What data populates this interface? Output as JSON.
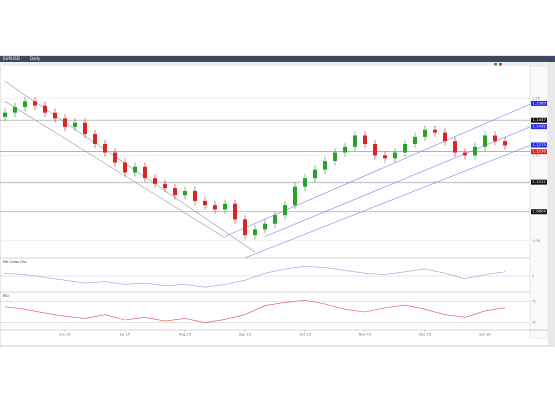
{
  "chart_data": {
    "type": "candlestick",
    "title": "EURUSD",
    "timeframe": "Daily",
    "open": [
      1.147,
      1.15,
      1.154,
      1.158,
      1.155,
      1.15,
      1.146,
      1.14,
      1.143,
      1.135,
      1.128,
      1.122,
      1.115,
      1.108,
      1.112,
      1.104,
      1.1,
      1.097,
      1.092,
      1.095,
      1.088,
      1.085,
      1.082,
      1.086,
      1.075,
      1.064,
      1.068,
      1.072,
      1.078,
      1.085,
      1.098,
      1.104,
      1.11,
      1.116,
      1.122,
      1.126,
      1.134,
      1.128,
      1.12,
      1.118,
      1.122,
      1.128,
      1.133,
      1.138,
      1.136,
      1.13,
      1.122,
      1.12,
      1.126,
      1.134,
      1.13
    ],
    "high": [
      1.153,
      1.157,
      1.161,
      1.161,
      1.158,
      1.153,
      1.149,
      1.146,
      1.146,
      1.138,
      1.131,
      1.125,
      1.118,
      1.115,
      1.115,
      1.107,
      1.103,
      1.1,
      1.098,
      1.098,
      1.091,
      1.088,
      1.089,
      1.089,
      1.078,
      1.071,
      1.075,
      1.081,
      1.088,
      1.101,
      1.107,
      1.113,
      1.119,
      1.125,
      1.129,
      1.137,
      1.137,
      1.131,
      1.123,
      1.125,
      1.131,
      1.136,
      1.141,
      1.141,
      1.139,
      1.133,
      1.125,
      1.129,
      1.137,
      1.137,
      1.133
    ],
    "low": [
      1.144,
      1.147,
      1.151,
      1.152,
      1.147,
      1.143,
      1.137,
      1.137,
      1.132,
      1.125,
      1.119,
      1.112,
      1.105,
      1.105,
      1.101,
      1.097,
      1.094,
      1.089,
      1.089,
      1.085,
      1.082,
      1.079,
      1.079,
      1.072,
      1.061,
      1.061,
      1.065,
      1.069,
      1.075,
      1.082,
      1.095,
      1.101,
      1.107,
      1.113,
      1.119,
      1.123,
      1.125,
      1.117,
      1.115,
      1.115,
      1.119,
      1.125,
      1.13,
      1.133,
      1.127,
      1.119,
      1.117,
      1.117,
      1.123,
      1.127,
      1.124
    ],
    "close": [
      1.15,
      1.154,
      1.158,
      1.155,
      1.15,
      1.146,
      1.14,
      1.143,
      1.135,
      1.128,
      1.122,
      1.115,
      1.108,
      1.112,
      1.104,
      1.1,
      1.097,
      1.092,
      1.095,
      1.088,
      1.085,
      1.082,
      1.086,
      1.075,
      1.064,
      1.068,
      1.072,
      1.078,
      1.085,
      1.098,
      1.104,
      1.11,
      1.116,
      1.122,
      1.126,
      1.134,
      1.128,
      1.12,
      1.118,
      1.122,
      1.128,
      1.133,
      1.138,
      1.136,
      1.13,
      1.122,
      1.12,
      1.126,
      1.134,
      1.13,
      1.127
    ],
    "up_color": "#2ca02c",
    "down_color": "#d62728",
    "ylim": [
      1.05,
      1.18
    ],
    "yticks": [
      1.06,
      1.08,
      1.1,
      1.12,
      1.14,
      1.16
    ],
    "horizontal_lines": [
      {
        "value": 1.1447,
        "color": "#999999"
      },
      {
        "value": 1.1226,
        "color": "#e06060"
      },
      {
        "value": 1.1012,
        "color": "#999999"
      },
      {
        "value": 1.0804,
        "color": "#999999"
      }
    ],
    "price_labels": [
      {
        "value": 1.1565,
        "color": "#2a2ae0"
      },
      {
        "value": 1.1447,
        "color": "#111111"
      },
      {
        "value": 1.1402,
        "color": "#2a2ae0"
      },
      {
        "value": 1.1273,
        "color": "#2a2ae0"
      },
      {
        "value": 1.1226,
        "color": "#e02020"
      },
      {
        "value": 1.1012,
        "color": "#111111"
      },
      {
        "value": 1.0804,
        "color": "#111111"
      }
    ],
    "trendlines": [
      {
        "x": [
          0,
          25
        ],
        "y": [
          1.172,
          1.052
        ],
        "color": "#999999"
      },
      {
        "x": [
          0,
          22
        ],
        "y": [
          1.158,
          1.062
        ],
        "color": "#999999"
      },
      {
        "x": [
          22,
          52.5
        ],
        "y": [
          1.063,
          1.156
        ],
        "color": "#8080ee"
      },
      {
        "x": [
          26,
          52.5
        ],
        "y": [
          1.063,
          1.14
        ],
        "color": "#8080ee"
      },
      {
        "x": [
          24,
          52.5
        ],
        "y": [
          1.048,
          1.127
        ],
        "color": "#8080ee"
      }
    ],
    "xticks": [
      {
        "value": 6,
        "label": "Jun 15"
      },
      {
        "value": 12,
        "label": "Jul 15"
      },
      {
        "value": 18,
        "label": "Aug 15"
      },
      {
        "value": 24,
        "label": "Sep 15"
      },
      {
        "value": 30,
        "label": "Oct 15"
      },
      {
        "value": 36,
        "label": "Nov 15"
      },
      {
        "value": 42,
        "label": "Dec 15"
      },
      {
        "value": 48,
        "label": "Jan 16"
      }
    ],
    "indicators": [
      {
        "name": "MA Cross Osc",
        "color": "#4a6ad0",
        "ylim": [
          -1,
          1
        ],
        "yticks": [
          0
        ],
        "values": [
          0.2,
          0.1,
          -0.1,
          -0.3,
          -0.5,
          -0.4,
          -0.6,
          -0.5,
          -0.7,
          -0.6,
          -0.8,
          -0.6,
          -0.3,
          0.2,
          0.5,
          0.7,
          0.6,
          0.4,
          0.2,
          0.1,
          0.3,
          0.5,
          0.2,
          -0.2,
          0.1,
          0.3
        ]
      },
      {
        "name": "RSI",
        "color": "#e05050",
        "ylim": [
          20,
          80
        ],
        "yticks": [
          30,
          70
        ],
        "values": [
          60,
          55,
          48,
          42,
          38,
          45,
          35,
          40,
          33,
          38,
          30,
          36,
          45,
          62,
          68,
          72,
          65,
          55,
          50,
          58,
          63,
          55,
          45,
          40,
          52,
          58
        ]
      }
    ]
  }
}
